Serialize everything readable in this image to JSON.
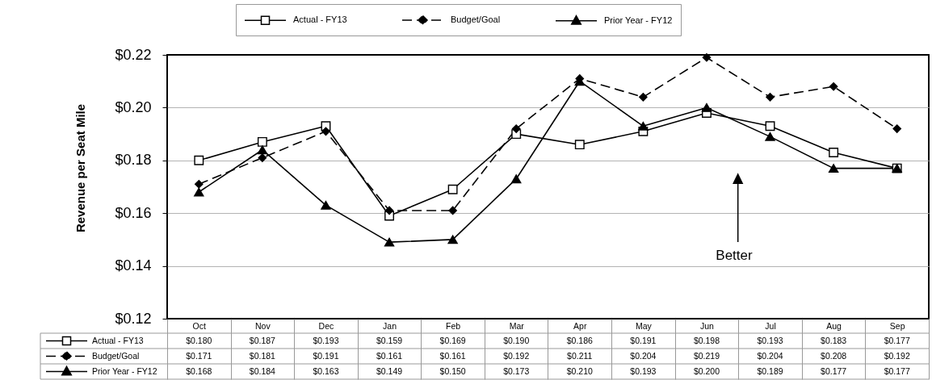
{
  "chart_data": {
    "type": "line",
    "categories": [
      "Oct",
      "Nov",
      "Dec",
      "Jan",
      "Feb",
      "Mar",
      "Apr",
      "May",
      "Jun",
      "Jul",
      "Aug",
      "Sep"
    ],
    "ylabel": "Revenue per Seat Mile",
    "annotations": [
      "Better"
    ],
    "ylim": [
      0.12,
      0.22
    ],
    "yticks": [
      {
        "value": 0.12,
        "label": "$0.12"
      },
      {
        "value": 0.14,
        "label": "$0.14"
      },
      {
        "value": 0.16,
        "label": "$0.16"
      },
      {
        "value": 0.18,
        "label": "$0.18"
      },
      {
        "value": 0.2,
        "label": "$0.20"
      },
      {
        "value": 0.22,
        "label": "$0.22"
      }
    ],
    "grid": "y",
    "legend": "top",
    "series": [
      {
        "name": "Actual - FY13",
        "color": "#000000",
        "marker": "square",
        "line_style": "solid",
        "values": [
          0.18,
          0.187,
          0.193,
          0.159,
          0.169,
          0.19,
          0.186,
          0.191,
          0.198,
          0.193,
          0.183,
          0.177
        ],
        "value_labels": [
          "$0.180",
          "$0.187",
          "$0.193",
          "$0.159",
          "$0.169",
          "$0.190",
          "$0.186",
          "$0.191",
          "$0.198",
          "$0.193",
          "$0.183",
          "$0.177"
        ]
      },
      {
        "name": "Budget/Goal",
        "color": "#000000",
        "marker": "diamond",
        "line_style": "dashed",
        "values": [
          0.171,
          0.181,
          0.191,
          0.161,
          0.161,
          0.192,
          0.211,
          0.204,
          0.219,
          0.204,
          0.208,
          0.192
        ],
        "value_labels": [
          "$0.171",
          "$0.181",
          "$0.191",
          "$0.161",
          "$0.161",
          "$0.192",
          "$0.211",
          "$0.204",
          "$0.219",
          "$0.204",
          "$0.208",
          "$0.192"
        ]
      },
      {
        "name": "Prior Year - FY12",
        "color": "#000000",
        "marker": "triangle",
        "line_style": "solid",
        "values": [
          0.168,
          0.184,
          0.163,
          0.149,
          0.15,
          0.173,
          0.21,
          0.193,
          0.2,
          0.189,
          0.177,
          0.177
        ],
        "value_labels": [
          "$0.168",
          "$0.184",
          "$0.163",
          "$0.149",
          "$0.150",
          "$0.173",
          "$0.210",
          "$0.193",
          "$0.200",
          "$0.189",
          "$0.177",
          "$0.177"
        ]
      }
    ]
  }
}
